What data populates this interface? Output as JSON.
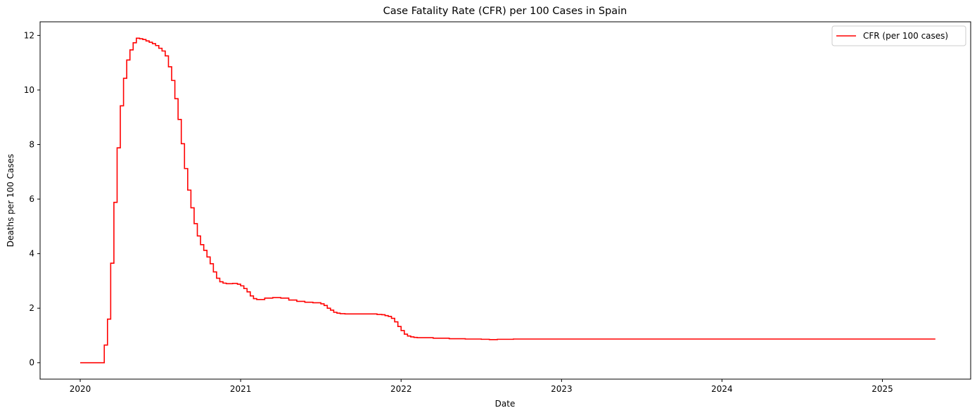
{
  "chart_data": {
    "type": "line",
    "title": "Case Fatality Rate (CFR) per 100 Cases in Spain",
    "xlabel": "Date",
    "ylabel": "Deaths per 100 Cases",
    "xlim": [
      2019.75,
      2025.55
    ],
    "ylim": [
      -0.6,
      12.5
    ],
    "xticks": [
      2020,
      2021,
      2022,
      2023,
      2024,
      2025
    ],
    "xtick_labels": [
      "2020",
      "2021",
      "2022",
      "2023",
      "2024",
      "2025"
    ],
    "yticks": [
      0,
      2,
      4,
      6,
      8,
      10,
      12
    ],
    "ytick_labels": [
      "0",
      "2",
      "4",
      "6",
      "8",
      "10",
      "12"
    ],
    "grid": false,
    "legend_position": "top-right",
    "series": [
      {
        "name": "CFR (per 100 cases)",
        "color": "#ff0000",
        "step": true,
        "x": [
          2020.0,
          2020.15,
          2020.17,
          2020.19,
          2020.21,
          2020.23,
          2020.25,
          2020.27,
          2020.29,
          2020.31,
          2020.33,
          2020.35,
          2020.37,
          2020.39,
          2020.41,
          2020.43,
          2020.45,
          2020.47,
          2020.49,
          2020.51,
          2020.53,
          2020.55,
          2020.57,
          2020.59,
          2020.61,
          2020.63,
          2020.65,
          2020.67,
          2020.69,
          2020.71,
          2020.73,
          2020.75,
          2020.77,
          2020.79,
          2020.81,
          2020.83,
          2020.85,
          2020.87,
          2020.89,
          2020.91,
          2020.95,
          2020.98,
          2021.0,
          2021.02,
          2021.04,
          2021.06,
          2021.08,
          2021.1,
          2021.15,
          2021.2,
          2021.25,
          2021.3,
          2021.35,
          2021.4,
          2021.45,
          2021.5,
          2021.52,
          2021.54,
          2021.56,
          2021.58,
          2021.6,
          2021.62,
          2021.65,
          2021.7,
          2021.75,
          2021.8,
          2021.85,
          2021.88,
          2021.9,
          2021.92,
          2021.94,
          2021.96,
          2021.98,
          2022.0,
          2022.02,
          2022.04,
          2022.06,
          2022.08,
          2022.1,
          2022.2,
          2022.3,
          2022.4,
          2022.5,
          2022.55,
          2022.6,
          2022.7,
          2022.8,
          2023.0,
          2023.5,
          2024.0,
          2024.5,
          2025.0,
          2025.33
        ],
        "values": [
          0.0,
          0.65,
          1.6,
          3.65,
          5.88,
          7.88,
          9.42,
          10.43,
          11.1,
          11.47,
          11.73,
          11.9,
          11.88,
          11.85,
          11.8,
          11.75,
          11.7,
          11.63,
          11.53,
          11.43,
          11.25,
          10.85,
          10.35,
          9.68,
          8.92,
          8.03,
          7.12,
          6.33,
          5.68,
          5.1,
          4.65,
          4.33,
          4.12,
          3.88,
          3.63,
          3.33,
          3.1,
          2.97,
          2.92,
          2.9,
          2.91,
          2.88,
          2.82,
          2.72,
          2.6,
          2.45,
          2.35,
          2.32,
          2.37,
          2.39,
          2.37,
          2.3,
          2.25,
          2.22,
          2.2,
          2.16,
          2.1,
          2.0,
          1.93,
          1.85,
          1.82,
          1.8,
          1.79,
          1.79,
          1.79,
          1.79,
          1.77,
          1.76,
          1.73,
          1.7,
          1.63,
          1.5,
          1.33,
          1.18,
          1.05,
          0.98,
          0.95,
          0.93,
          0.92,
          0.9,
          0.88,
          0.87,
          0.86,
          0.85,
          0.86,
          0.87,
          0.87,
          0.87,
          0.87,
          0.87,
          0.87,
          0.87,
          0.87
        ]
      }
    ]
  }
}
